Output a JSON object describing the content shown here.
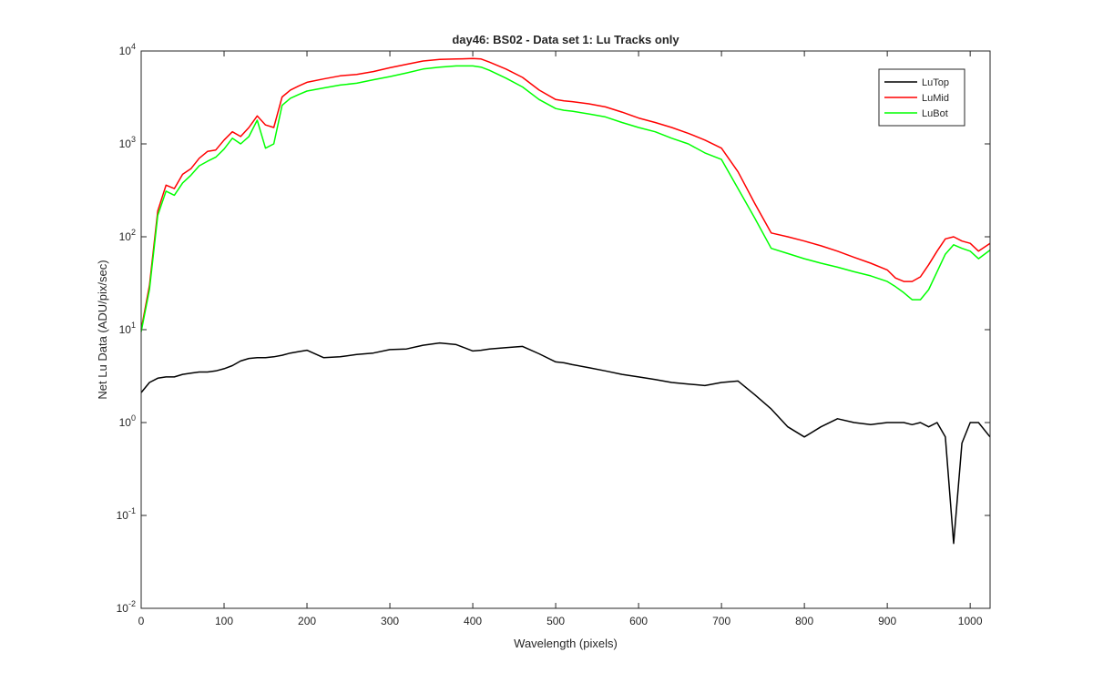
{
  "chart_data": {
    "type": "line",
    "title": "day46: BS02 - Data set 1: Lu Tracks only",
    "xlabel": "Wavelength (pixels)",
    "ylabel": "Net Lu Data (ADU/pix/sec)",
    "xlim": [
      0,
      1024
    ],
    "ylim": [
      0.01,
      10000
    ],
    "yscale": "log",
    "grid": false,
    "legend_position": "top-right",
    "x_ticks": [
      "0",
      "100",
      "200",
      "300",
      "400",
      "500",
      "600",
      "700",
      "800",
      "900",
      "1000"
    ],
    "y_ticks": [
      {
        "base": "10",
        "exp": "-2"
      },
      {
        "base": "10",
        "exp": "-1"
      },
      {
        "base": "10",
        "exp": "0"
      },
      {
        "base": "10",
        "exp": "1"
      },
      {
        "base": "10",
        "exp": "2"
      },
      {
        "base": "10",
        "exp": "3"
      },
      {
        "base": "10",
        "exp": "4"
      }
    ],
    "x": [
      0,
      10,
      20,
      30,
      40,
      50,
      60,
      70,
      80,
      90,
      100,
      110,
      120,
      130,
      140,
      150,
      160,
      170,
      180,
      190,
      200,
      220,
      240,
      260,
      280,
      300,
      320,
      340,
      360,
      380,
      400,
      410,
      420,
      440,
      460,
      480,
      500,
      510,
      520,
      540,
      560,
      580,
      600,
      620,
      640,
      660,
      680,
      700,
      720,
      740,
      760,
      780,
      800,
      820,
      840,
      860,
      880,
      900,
      910,
      920,
      930,
      940,
      950,
      960,
      970,
      980,
      990,
      1000,
      1010,
      1024
    ],
    "series": [
      {
        "name": "LuTop",
        "color": "#000000",
        "values": [
          2.1,
          2.7,
          3.0,
          3.1,
          3.1,
          3.3,
          3.4,
          3.5,
          3.5,
          3.6,
          3.8,
          4.1,
          4.6,
          4.9,
          5.0,
          5.0,
          5.1,
          5.3,
          5.6,
          5.8,
          6.0,
          5.0,
          5.1,
          5.4,
          5.6,
          6.1,
          6.2,
          6.8,
          7.2,
          6.9,
          5.9,
          6.0,
          6.2,
          6.4,
          6.6,
          5.5,
          4.5,
          4.4,
          4.2,
          3.9,
          3.6,
          3.3,
          3.1,
          2.9,
          2.7,
          2.6,
          2.5,
          2.7,
          2.8,
          2.0,
          1.4,
          0.9,
          0.7,
          0.9,
          1.1,
          1.0,
          0.95,
          1.0,
          1.0,
          1.0,
          0.95,
          1.0,
          0.9,
          1.0,
          0.7,
          0.05,
          0.6,
          1.0,
          1.0,
          0.7
        ]
      },
      {
        "name": "LuMid",
        "color": "#ff0000",
        "values": [
          10,
          30,
          190,
          360,
          330,
          470,
          540,
          700,
          830,
          860,
          1100,
          1350,
          1200,
          1500,
          2000,
          1600,
          1500,
          3200,
          3800,
          4200,
          4600,
          5000,
          5400,
          5600,
          6000,
          6600,
          7200,
          7800,
          8100,
          8200,
          8300,
          8200,
          7600,
          6400,
          5200,
          3800,
          3000,
          2900,
          2850,
          2700,
          2500,
          2200,
          1900,
          1700,
          1500,
          1300,
          1100,
          900,
          500,
          230,
          110,
          100,
          90,
          80,
          70,
          60,
          52,
          44,
          36,
          33,
          33,
          37,
          50,
          70,
          95,
          100,
          90,
          85,
          70,
          85
        ]
      },
      {
        "name": "LuBot",
        "color": "#00ff00",
        "values": [
          9.5,
          27,
          170,
          310,
          280,
          380,
          460,
          580,
          650,
          720,
          880,
          1150,
          1000,
          1200,
          1800,
          900,
          1000,
          2600,
          3100,
          3400,
          3700,
          4000,
          4300,
          4500,
          4900,
          5300,
          5800,
          6400,
          6700,
          6900,
          6900,
          6700,
          6200,
          5100,
          4100,
          3000,
          2400,
          2300,
          2250,
          2100,
          1950,
          1700,
          1500,
          1350,
          1150,
          1000,
          800,
          680,
          330,
          160,
          75,
          66,
          58,
          52,
          47,
          42,
          38,
          33,
          29,
          25,
          21,
          21,
          27,
          42,
          65,
          82,
          75,
          70,
          58,
          72
        ]
      }
    ]
  }
}
